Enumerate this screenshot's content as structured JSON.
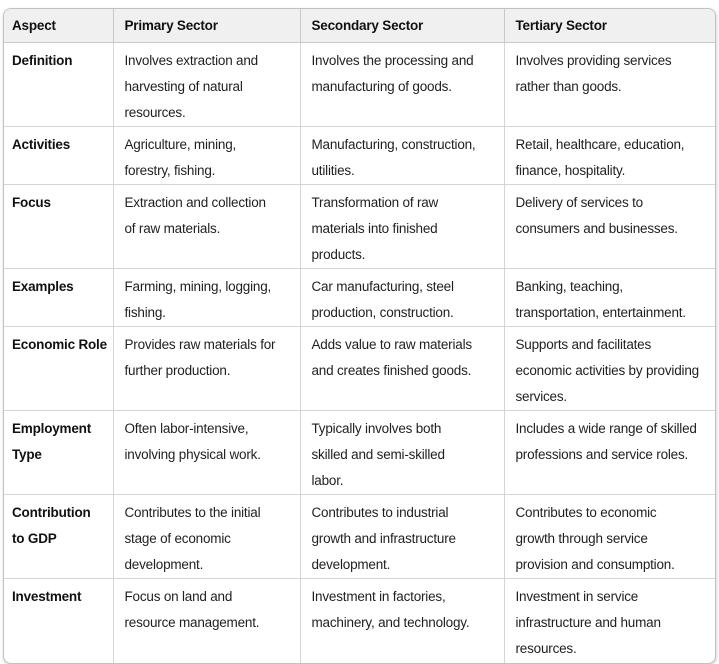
{
  "colors": {
    "page_bg": "#ffffff",
    "header_bg": "#f0f0f0",
    "outer_border": "#c2c2c2",
    "inner_border": "#d5d5d5",
    "text": "#1f1f1f",
    "heading_text": "#111111"
  },
  "table": {
    "columns": [
      "Aspect",
      "Primary Sector",
      "Secondary Sector",
      "Tertiary Sector"
    ],
    "rows": [
      {
        "aspect": "Definition",
        "primary": "Involves extraction and\nharvesting of natural\nresources.",
        "secondary": "Involves the processing and\nmanufacturing of goods.",
        "tertiary": "Involves providing services\nrather than goods."
      },
      {
        "aspect": "Activities",
        "primary": "Agriculture, mining,\nforestry, fishing.",
        "secondary": "Manufacturing, construction,\nutilities.",
        "tertiary": "Retail, healthcare, education,\nfinance, hospitality."
      },
      {
        "aspect": "Focus",
        "primary": "Extraction and collection\nof raw materials.",
        "secondary": "Transformation of raw\nmaterials into finished\nproducts.",
        "tertiary": "Delivery of services to\nconsumers and businesses."
      },
      {
        "aspect": "Examples",
        "primary": "Farming, mining, logging,\nfishing.",
        "secondary": "Car manufacturing, steel\nproduction, construction.",
        "tertiary": "Banking, teaching,\ntransportation, entertainment."
      },
      {
        "aspect": "Economic Role",
        "primary": "Provides raw materials for\nfurther production.",
        "secondary": "Adds value to raw materials\nand creates finished goods.",
        "tertiary": "Supports and facilitates\neconomic activities by providing\nservices."
      },
      {
        "aspect": "Employment\nType",
        "primary": "Often labor-intensive,\ninvolving physical work.",
        "secondary": "Typically involves both\nskilled and semi-skilled\nlabor.",
        "tertiary": "Includes a wide range of skilled\nprofessions and service roles."
      },
      {
        "aspect": "Contribution\nto GDP",
        "primary": "Contributes to the initial\nstage of economic\ndevelopment.",
        "secondary": "Contributes to industrial\ngrowth and infrastructure\ndevelopment.",
        "tertiary": "Contributes to economic\ngrowth through service\nprovision and consumption."
      },
      {
        "aspect": "Investment",
        "primary": "Focus on land and\nresource management.",
        "secondary": "Investment in factories,\nmachinery, and technology.",
        "tertiary": "Investment in service\ninfrastructure and human\nresources."
      }
    ]
  }
}
